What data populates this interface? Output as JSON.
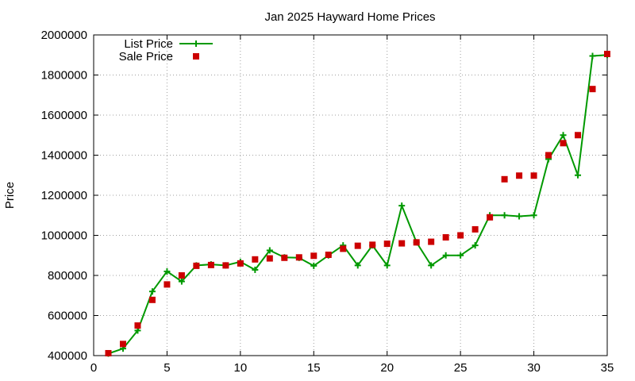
{
  "chart_data": {
    "type": "line",
    "title": "Jan 2025 Hayward Home Prices",
    "xlabel": "",
    "ylabel": "Price",
    "xlim": [
      0,
      35
    ],
    "ylim": [
      400000,
      2000000
    ],
    "xticks": [
      0,
      5,
      10,
      15,
      20,
      25,
      30,
      35
    ],
    "yticks": [
      400000,
      600000,
      800000,
      1000000,
      1200000,
      1400000,
      1600000,
      1800000,
      2000000
    ],
    "grid": true,
    "legend_position": "top-left",
    "series": [
      {
        "name": "List Price",
        "style": "line-with-plus-markers",
        "color": "#009900",
        "x": [
          1,
          2,
          3,
          4,
          5,
          6,
          7,
          8,
          9,
          10,
          11,
          12,
          13,
          14,
          15,
          16,
          17,
          18,
          19,
          20,
          21,
          22,
          23,
          24,
          25,
          26,
          27,
          28,
          29,
          30,
          31,
          32,
          33,
          34,
          35
        ],
        "y": [
          410000,
          435000,
          525000,
          720000,
          820000,
          770000,
          850000,
          855000,
          850000,
          868000,
          828000,
          925000,
          890000,
          888000,
          848000,
          900000,
          950000,
          850000,
          950000,
          850000,
          1148000,
          965000,
          850000,
          900000,
          900000,
          950000,
          1100000,
          1100000,
          1095000,
          1100000,
          1380000,
          1500000,
          1300000,
          1895000,
          1900000
        ]
      },
      {
        "name": "Sale Price",
        "style": "square-markers",
        "color": "#cc0000",
        "x": [
          1,
          2,
          3,
          4,
          5,
          6,
          7,
          8,
          9,
          10,
          11,
          12,
          13,
          14,
          15,
          16,
          17,
          18,
          19,
          20,
          21,
          22,
          23,
          24,
          25,
          26,
          27,
          28,
          29,
          30,
          31,
          32,
          33,
          34,
          35
        ],
        "y": [
          412000,
          458000,
          550000,
          678000,
          755000,
          800000,
          848000,
          852000,
          850000,
          860000,
          880000,
          885000,
          888000,
          890000,
          898000,
          903000,
          933000,
          948000,
          953000,
          958000,
          960000,
          965000,
          968000,
          990000,
          1000000,
          1030000,
          1090000,
          1280000,
          1298000,
          1298000,
          1400000,
          1460000,
          1500000,
          1730000,
          1905000
        ]
      }
    ]
  }
}
